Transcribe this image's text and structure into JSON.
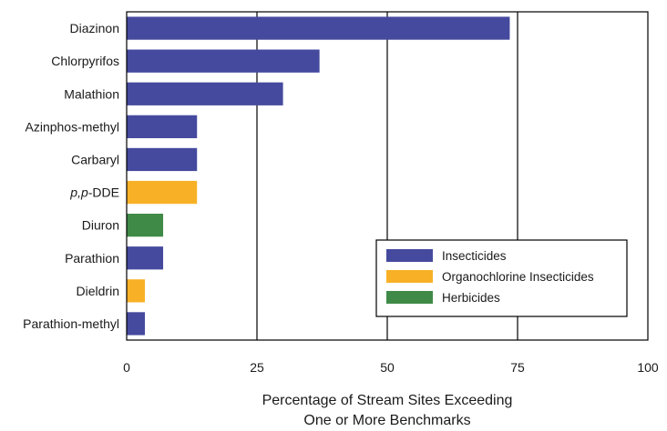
{
  "chart_data": {
    "type": "bar",
    "orientation": "horizontal",
    "categories": [
      {
        "label": "Diazinon",
        "italic_prefix": "",
        "value": 73.5,
        "group": "insecticides"
      },
      {
        "label": "Chlorpyrifos",
        "italic_prefix": "",
        "value": 37,
        "group": "insecticides"
      },
      {
        "label": "Malathion",
        "italic_prefix": "",
        "value": 30,
        "group": "insecticides"
      },
      {
        "label": "Azinphos-methyl",
        "italic_prefix": "",
        "value": 13.5,
        "group": "insecticides"
      },
      {
        "label": "Carbaryl",
        "italic_prefix": "",
        "value": 13.5,
        "group": "insecticides"
      },
      {
        "label": "-DDE",
        "italic_prefix": "p,p",
        "value": 13.5,
        "group": "organochlorine"
      },
      {
        "label": "Diuron",
        "italic_prefix": "",
        "value": 7,
        "group": "herbicides"
      },
      {
        "label": "Parathion",
        "italic_prefix": "",
        "value": 7,
        "group": "insecticides"
      },
      {
        "label": "Dieldrin",
        "italic_prefix": "",
        "value": 3.5,
        "group": "organochlorine"
      },
      {
        "label": "Parathion-methyl",
        "italic_prefix": "",
        "value": 3.5,
        "group": "insecticides"
      }
    ],
    "xlim": [
      0,
      100
    ],
    "xticks": [
      0,
      25,
      50,
      75,
      100
    ],
    "xlabel_lines": [
      "Percentage of Stream Sites Exceeding",
      "One or More Benchmarks"
    ],
    "vertical_grid": true,
    "legend_position": "lower-right",
    "legend": [
      {
        "key": "insecticides",
        "name": "Insecticides",
        "color": "#454a9e"
      },
      {
        "key": "organochlorine",
        "name": "Organochlorine Insecticides",
        "color": "#f8b127"
      },
      {
        "key": "herbicides",
        "name": "Herbicides",
        "color": "#3f8a47"
      }
    ]
  }
}
